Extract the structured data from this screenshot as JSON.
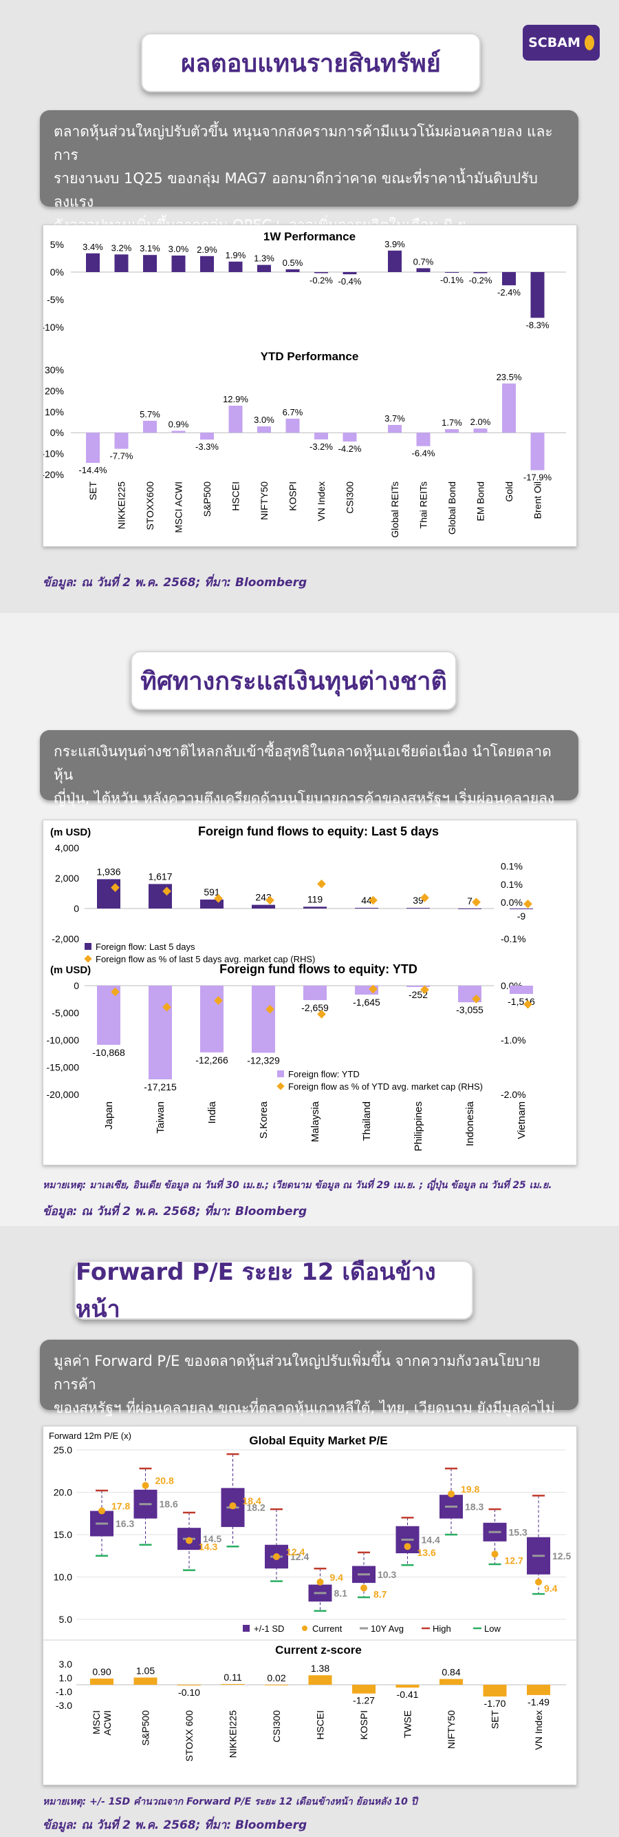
{
  "brand": {
    "logo_text": "SCBAM"
  },
  "section1": {
    "title": "ผลตอบแทนรายสินทรัพย์",
    "desc": [
      "ตลาดหุ้นส่วนใหญ่ปรับตัวขึ้น หนุนจากสงครามการค้ามีแนวโน้มผ่อนคลายลง และการ",
      "รายงานงบ 1Q25 ของกลุ่ม MAG7 ออกมาดีกว่าคาด ขณะที่ราคาน้ำมันดิบปรับลงแรง",
      "กังวลอุปทานเพิ่มขึ้นจากกลุ่ม OPEC+ อาจเพิ่มการผลิตในเดือน มิ.ย."
    ],
    "source": "ข้อมูล: ณ วันที่ 2 พ.ค. 2568; ที่มา: Bloomberg"
  },
  "section2": {
    "title": "ทิศทางกระแสเงินทุนต่างชาติ",
    "desc": [
      "กระแสเงินทุนต่างชาติไหลกลับเข้าซื้อสุทธิในตลาดหุ้นเอเชียต่อเนื่อง นำโดยตลาดหุ้น",
      "ญี่ปุ่น, ไต้หวัน หลังความตึงเครียดด้านนโยบายการค้าของสหรัฐฯ เริ่มผ่อนคลายลง"
    ],
    "note": "หมายเหตุ: มาเลเซีย, อินเดีย ข้อมูล ณ วันที่ 30 เม.ย.; เวียดนาม ข้อมูล ณ วันที่ 29 เม.ย. ; ญี่ปุ่น ข้อมูล ณ วันที่ 25 เม.ย.",
    "source": "ข้อมูล: ณ วันที่ 2 พ.ค. 2568; ที่มา: Bloomberg"
  },
  "section3": {
    "title": "Forward P/E ระยะ 12 เดือนข้างหน้า",
    "desc": [
      "มูลค่า Forward P/E ของตลาดหุ้นส่วนใหญ่ปรับเพิ่มขึ้น จากความกังวลนโยบายการค้า",
      "ของสหรัฐฯ ที่ผ่อนคลายลง ขณะที่ตลาดหุ้นเกาหลีใต้, ไทย, เวียดนาม ยังมีมูลค่าไม่แพง"
    ],
    "note": "หมายเหตุ: +/- 1SD คำนวณจาก Forward P/E ระยะ 12 เดือนข้างหน้า ย้อนหลัง 10 ปี",
    "source": "ข้อมูล: ณ วันที่ 2 พ.ค. 2568; ที่มา: Bloomberg"
  },
  "chart_data": [
    {
      "type": "bar",
      "title": "1W Performance",
      "categories": [
        "SET",
        "NIKKEI225",
        "STOXX600",
        "MSCI ACWI",
        "S&P500",
        "HSCEI",
        "NIFTY50",
        "KOSPI",
        "VN Index",
        "CSI300",
        "Global REITs",
        "Thai REITs",
        "Global Bond",
        "EM Bond",
        "Gold",
        "Brent Oil"
      ],
      "values": [
        3.4,
        3.2,
        3.1,
        3.0,
        2.9,
        1.9,
        1.3,
        0.5,
        -0.2,
        -0.4,
        3.9,
        0.7,
        -0.1,
        -0.2,
        -2.4,
        -8.3
      ],
      "ylim": [
        -10,
        5
      ],
      "yticks": [
        "5%",
        "0%",
        "-5%",
        "-10%"
      ],
      "color": "#4b2a84"
    },
    {
      "type": "bar",
      "title": "YTD Performance",
      "categories": [
        "SET",
        "NIKKEI225",
        "STOXX600",
        "MSCI ACWI",
        "S&P500",
        "HSCEI",
        "NIFTY50",
        "KOSPI",
        "VN Index",
        "CSI300",
        "Global REITs",
        "Thai REITs",
        "Global Bond",
        "EM Bond",
        "Gold",
        "Brent Oil"
      ],
      "values": [
        -14.4,
        -7.7,
        5.7,
        0.9,
        -3.3,
        12.9,
        3.0,
        6.7,
        -3.2,
        -4.2,
        3.7,
        -6.4,
        1.7,
        2.0,
        23.5,
        -17.9
      ],
      "ylim": [
        -20,
        30
      ],
      "yticks": [
        "30%",
        "20%",
        "10%",
        "0%",
        "-10%",
        "-20%"
      ],
      "color": "#c4a3f0"
    },
    {
      "type": "bar",
      "title": "Foreign fund flows to equity: Last 5 days",
      "ylabel": "(m USD)",
      "categories": [
        "Japan",
        "Taiwan",
        "India",
        "S.Korea",
        "Malaysia",
        "Thailand",
        "Philippines",
        "Indonesia",
        "Vietnam"
      ],
      "series": [
        {
          "name": "Foreign flow: Last 5 days",
          "values": [
            1936,
            1617,
            591,
            243,
            119,
            44,
            39,
            7,
            -9
          ],
          "color": "#4b2a84"
        },
        {
          "name": "Foreign flow as % of last 5 days avg. market cap (RHS)",
          "values": [
            0.04,
            0.03,
            0.01,
            0.005,
            0.05,
            0.005,
            0.012,
            0.0,
            -0.005
          ],
          "color": "#f2a81d"
        }
      ],
      "ylim": [
        -2000,
        4000
      ],
      "yticks": [
        "4,000",
        "2,000",
        "0",
        "-2,000"
      ],
      "y2lim": [
        -0.1,
        0.15
      ],
      "y2ticks": [
        "0.1%",
        "0.1%",
        "0.0%",
        "-0.1%"
      ]
    },
    {
      "type": "bar",
      "title": "Foreign fund flows to equity: YTD",
      "ylabel": "(m USD)",
      "categories": [
        "Japan",
        "Taiwan",
        "India",
        "S.Korea",
        "Malaysia",
        "Thailand",
        "Philippines",
        "Indonesia",
        "Vietnam"
      ],
      "series": [
        {
          "name": "Foreign flow: YTD",
          "values": [
            -10868,
            -17215,
            -12266,
            -12329,
            -2659,
            -1645,
            -252,
            -3055,
            -1516
          ],
          "color": "#c4a3f0"
        },
        {
          "name": "Foreign flow as % of YTD avg. market cap (RHS)",
          "values": [
            -0.12,
            -0.4,
            -0.28,
            -0.44,
            -0.53,
            -0.07,
            -0.08,
            -0.25,
            -0.35
          ],
          "color": "#f2a81d"
        }
      ],
      "ylim": [
        -20000,
        0
      ],
      "yticks": [
        "0",
        "-5,000",
        "-10,000",
        "-15,000",
        "-20,000"
      ],
      "y2lim": [
        -2.0,
        0
      ],
      "y2ticks": [
        "0.0%",
        "-1.0%",
        "-2.0%"
      ]
    },
    {
      "type": "scatter",
      "title": "Global Equity Market P/E",
      "ylabel": "Forward 12m P/E (x)",
      "categories": [
        "MSCI ACWI",
        "S&P500",
        "STOXX 600",
        "NIKKEI225",
        "CSI300",
        "HSCEI",
        "KOSPI",
        "TWSE",
        "NIFTY50",
        "SET",
        "VN Index"
      ],
      "avg": [
        16.3,
        18.6,
        14.5,
        18.2,
        12.4,
        8.1,
        10.3,
        14.4,
        18.3,
        15.3,
        12.5
      ],
      "current": [
        17.8,
        20.8,
        14.3,
        18.4,
        12.4,
        9.4,
        8.7,
        13.6,
        19.8,
        12.7,
        9.4
      ],
      "sd_low": [
        14.8,
        16.9,
        13.2,
        15.9,
        11.0,
        7.1,
        9.3,
        12.8,
        16.9,
        14.2,
        10.3
      ],
      "sd_high": [
        17.8,
        20.3,
        15.8,
        20.5,
        13.8,
        9.1,
        11.3,
        16.0,
        19.7,
        16.4,
        14.7
      ],
      "high": [
        20.2,
        22.8,
        17.6,
        24.5,
        18.0,
        11.0,
        12.9,
        17.0,
        22.8,
        18.0,
        19.6
      ],
      "low": [
        12.5,
        13.8,
        10.8,
        13.6,
        9.5,
        6.0,
        7.6,
        11.4,
        15.0,
        11.5,
        8.0
      ],
      "legend": [
        "+/-1 SD",
        "Current",
        "10Y Avg",
        "High",
        "Low"
      ],
      "ylim": [
        5,
        25
      ],
      "yticks": [
        "25.0",
        "20.0",
        "15.0",
        "10.0",
        "5.0"
      ]
    },
    {
      "type": "bar",
      "title": "Current z-score",
      "categories": [
        "MSCI ACWI",
        "S&P500",
        "STOXX 600",
        "NIKKEI225",
        "CSI300",
        "HSCEI",
        "KOSPI",
        "TWSE",
        "NIFTY50",
        "SET",
        "VN Index"
      ],
      "values": [
        0.9,
        1.05,
        -0.1,
        0.11,
        0.02,
        1.38,
        -1.27,
        -0.41,
        0.84,
        -1.7,
        -1.49
      ],
      "labels": [
        "0.90",
        "1.05",
        "-0.10",
        "0.11",
        "0.02",
        "1.38",
        "-1.27",
        "-0.41",
        "0.84",
        "-1.70",
        "-1.49"
      ],
      "ylim": [
        -3,
        3
      ],
      "yticks": [
        "3.0",
        "1.0",
        "-1.0",
        "-3.0"
      ],
      "color": "#f2a81d"
    }
  ]
}
